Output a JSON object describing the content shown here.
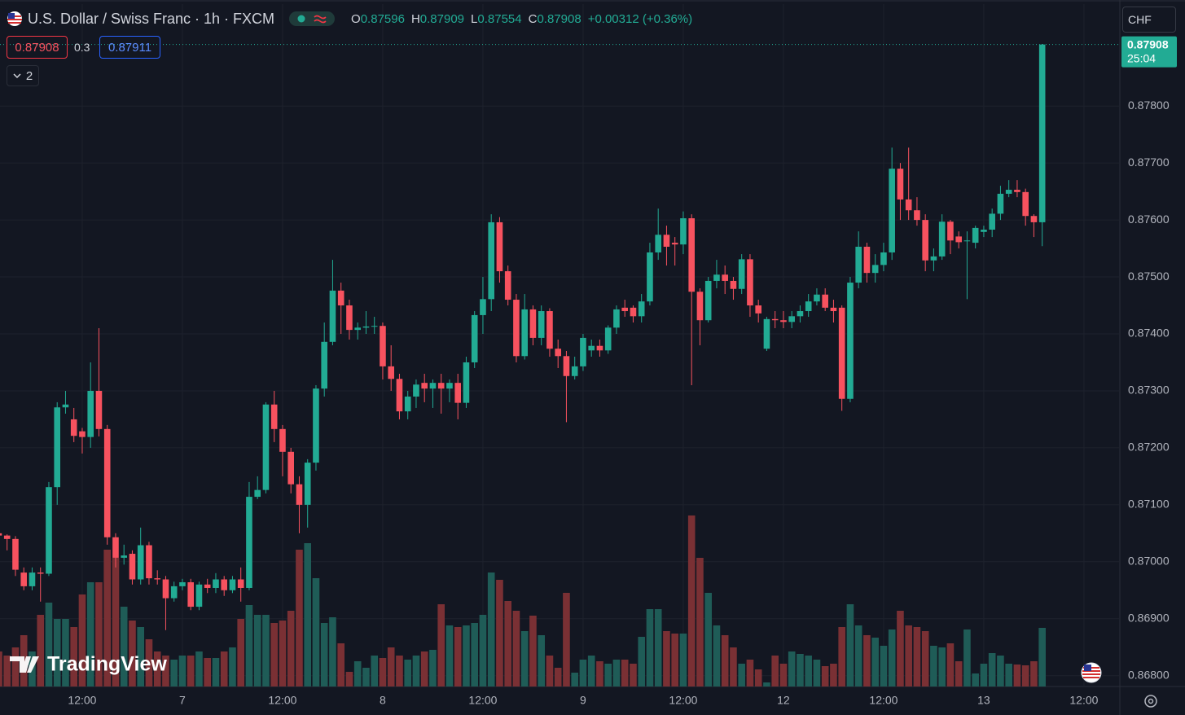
{
  "header": {
    "title": "U.S. Dollar / Swiss Franc · 1h · FXCM",
    "o": "O",
    "h": "H",
    "l": "L",
    "c": "C",
    "change": "+0.00312 (+0.36%)",
    "spread": "0.3",
    "ask": "0.87911",
    "indicators": "2",
    "currency": "CHF",
    "countdown": "25:04",
    "brand": "TradingView"
  },
  "chart_data": {
    "type": "candlestick",
    "up_color": "#22ab94",
    "down_color": "#f7525f",
    "volume_up_color": "#1f5c57",
    "volume_down_color": "#7a3034",
    "grid": true,
    "xlim": [
      0.15,
      134.3
    ],
    "xticks": [
      {
        "value": 10,
        "label": "12:00"
      },
      {
        "value": 22,
        "label": "7"
      },
      {
        "value": 34,
        "label": "12:00"
      },
      {
        "value": 46,
        "label": "8"
      },
      {
        "value": 58,
        "label": "12:00"
      },
      {
        "value": 70,
        "label": "9"
      },
      {
        "value": 82,
        "label": "12:00"
      },
      {
        "value": 94,
        "label": "12"
      },
      {
        "value": 106,
        "label": "12:00"
      },
      {
        "value": 118,
        "label": "13"
      },
      {
        "value": 130,
        "label": "12:00"
      }
    ],
    "ylim": [
      0.86781,
      0.87979
    ],
    "yticks": [
      {
        "value": 0.868,
        "label": "0.86800"
      },
      {
        "value": 0.869,
        "label": "0.86900"
      },
      {
        "value": 0.87,
        "label": "0.87000"
      },
      {
        "value": 0.871,
        "label": "0.87100"
      },
      {
        "value": 0.872,
        "label": "0.87200"
      },
      {
        "value": 0.873,
        "label": "0.87300"
      },
      {
        "value": 0.874,
        "label": "0.87400"
      },
      {
        "value": 0.875,
        "label": "0.87500"
      },
      {
        "value": 0.876,
        "label": "0.87600"
      },
      {
        "value": 0.877,
        "label": "0.87700"
      },
      {
        "value": 0.878,
        "label": "0.87800"
      }
    ],
    "open": [
      0.8705,
      0.87046,
      0.8704,
      0.86981,
      0.86957,
      0.86981,
      0.86979,
      0.87131,
      0.87271,
      0.8725,
      0.87229,
      0.87219,
      0.873,
      0.87233,
      0.87043,
      0.87007,
      0.87014,
      0.86969,
      0.87029,
      0.86971,
      0.86969,
      0.86936,
      0.86957,
      0.86964,
      0.86921,
      0.8696,
      0.86954,
      0.86969,
      0.8695,
      0.86969,
      0.86954,
      0.87114,
      0.87126,
      0.87276,
      0.87233,
      0.87193,
      0.87136,
      0.871,
      0.87174,
      0.87304,
      0.87386,
      0.87476,
      0.8745,
      0.87407,
      0.87411,
      0.87413,
      0.87414,
      0.87343,
      0.87321,
      0.87264,
      0.8729,
      0.87314,
      0.87304,
      0.87314,
      0.87304,
      0.87314,
      0.87279,
      0.8735,
      0.87433,
      0.87461,
      0.87596,
      0.8751,
      0.8746,
      0.87361,
      0.87443,
      0.87393,
      0.8744,
      0.87374,
      0.87361,
      0.87326,
      0.87343,
      0.87371,
      0.87379,
      0.87371,
      0.87411,
      0.87446,
      0.87446,
      0.87431,
      0.87457,
      0.87543,
      0.87574,
      0.8756,
      0.87557,
      0.87603,
      0.87474,
      0.87424,
      0.87493,
      0.87504,
      0.87493,
      0.87479,
      0.87531,
      0.8745,
      0.87374,
      0.87426,
      0.87424,
      0.87421,
      0.87431,
      0.8744,
      0.87457,
      0.87469,
      0.87446,
      0.87446,
      0.87286,
      0.8749,
      0.87553,
      0.87507,
      0.87521,
      0.87543,
      0.8769,
      0.87636,
      0.87617,
      0.876,
      0.87529,
      0.87536,
      0.87597,
      0.87571,
      0.87564,
      0.8756,
      0.87579,
      0.87583,
      0.87611,
      0.87646,
      0.87653,
      0.87649,
      0.87607,
      0.87596
    ],
    "high": [
      0.8706,
      0.87048,
      0.87045,
      0.8699,
      0.8699,
      0.8699,
      0.8714,
      0.8728,
      0.873,
      0.8727,
      0.87235,
      0.8735,
      0.8741,
      0.8724,
      0.8705,
      0.8703,
      0.8702,
      0.8706,
      0.87035,
      0.86985,
      0.86975,
      0.86965,
      0.8697,
      0.8697,
      0.86965,
      0.8697,
      0.8698,
      0.86975,
      0.86975,
      0.8699,
      0.8714,
      0.8715,
      0.8728,
      0.873,
      0.8724,
      0.872,
      0.8715,
      0.8718,
      0.8731,
      0.8742,
      0.8753,
      0.8749,
      0.8746,
      0.8742,
      0.8744,
      0.8743,
      0.8742,
      0.8738,
      0.8733,
      0.873,
      0.8732,
      0.8733,
      0.8732,
      0.8733,
      0.8732,
      0.8733,
      0.8736,
      0.8744,
      0.875,
      0.8761,
      0.87605,
      0.8752,
      0.8747,
      0.8747,
      0.8745,
      0.8745,
      0.87445,
      0.8739,
      0.8737,
      0.8736,
      0.874,
      0.8739,
      0.8739,
      0.87415,
      0.8745,
      0.8746,
      0.8745,
      0.8747,
      0.8756,
      0.8762,
      0.8759,
      0.8757,
      0.87615,
      0.8761,
      0.8748,
      0.875,
      0.8753,
      0.8752,
      0.875,
      0.8754,
      0.8754,
      0.8746,
      0.8743,
      0.8744,
      0.8744,
      0.8744,
      0.8745,
      0.8747,
      0.8748,
      0.8748,
      0.8746,
      0.8745,
      0.875,
      0.8758,
      0.8756,
      0.8754,
      0.8756,
      0.87727,
      0.877,
      0.87727,
      0.8764,
      0.8761,
      0.8755,
      0.8761,
      0.876,
      0.8758,
      0.8758,
      0.8759,
      0.8759,
      0.8762,
      0.8766,
      0.8767,
      0.8767,
      0.87655,
      0.8761,
      0.87909
    ],
    "low": [
      0.8703,
      0.8702,
      0.86975,
      0.8695,
      0.8695,
      0.8693,
      0.86975,
      0.871,
      0.8726,
      0.8721,
      0.8719,
      0.872,
      0.8722,
      0.8703,
      0.8699,
      0.86995,
      0.8696,
      0.8696,
      0.8696,
      0.8696,
      0.8688,
      0.8693,
      0.8695,
      0.86915,
      0.86915,
      0.86945,
      0.86945,
      0.8694,
      0.86945,
      0.8693,
      0.8695,
      0.8711,
      0.8712,
      0.8721,
      0.8715,
      0.8712,
      0.8705,
      0.8706,
      0.8716,
      0.8729,
      0.8738,
      0.874,
      0.8739,
      0.8739,
      0.874,
      0.874,
      0.8732,
      0.873,
      0.8725,
      0.8725,
      0.8727,
      0.8728,
      0.8727,
      0.8726,
      0.8728,
      0.8725,
      0.8727,
      0.8734,
      0.874,
      0.8744,
      0.8749,
      0.8745,
      0.8735,
      0.87355,
      0.8738,
      0.8738,
      0.8736,
      0.8734,
      0.87245,
      0.8732,
      0.87335,
      0.8736,
      0.8736,
      0.87365,
      0.874,
      0.8743,
      0.8742,
      0.8742,
      0.8745,
      0.8753,
      0.8752,
      0.8752,
      0.8754,
      0.8731,
      0.8738,
      0.8742,
      0.8748,
      0.8747,
      0.8746,
      0.8747,
      0.8743,
      0.8742,
      0.8737,
      0.8741,
      0.8741,
      0.8741,
      0.8742,
      0.8743,
      0.8745,
      0.8744,
      0.8742,
      0.87265,
      0.8728,
      0.8748,
      0.8749,
      0.8749,
      0.8751,
      0.8753,
      0.876,
      0.876,
      0.8759,
      0.8751,
      0.8751,
      0.8753,
      0.8754,
      0.8755,
      0.87461,
      0.8755,
      0.8757,
      0.8757,
      0.876,
      0.8764,
      0.8764,
      0.8759,
      0.8757,
      0.87554
    ],
    "close": [
      0.87046,
      0.8704,
      0.86986,
      0.86957,
      0.86981,
      0.86979,
      0.87131,
      0.87271,
      0.87276,
      0.87221,
      0.87219,
      0.873,
      0.87233,
      0.87043,
      0.87007,
      0.87011,
      0.86969,
      0.87029,
      0.86971,
      0.86969,
      0.86936,
      0.86957,
      0.86964,
      0.86921,
      0.8696,
      0.86954,
      0.86969,
      0.8695,
      0.86969,
      0.86954,
      0.87114,
      0.87126,
      0.87276,
      0.87233,
      0.87193,
      0.87136,
      0.871,
      0.87174,
      0.87304,
      0.87386,
      0.87476,
      0.8745,
      0.87407,
      0.87411,
      0.87413,
      0.87414,
      0.87343,
      0.87321,
      0.87264,
      0.8729,
      0.87311,
      0.87304,
      0.87314,
      0.87304,
      0.87314,
      0.87279,
      0.8735,
      0.87433,
      0.87461,
      0.87596,
      0.8751,
      0.8746,
      0.87361,
      0.87443,
      0.87393,
      0.8744,
      0.87374,
      0.87361,
      0.87326,
      0.87343,
      0.87393,
      0.87379,
      0.87371,
      0.87411,
      0.87443,
      0.8744,
      0.87431,
      0.87457,
      0.87543,
      0.87574,
      0.87553,
      0.87557,
      0.87603,
      0.87474,
      0.87424,
      0.87493,
      0.87504,
      0.87493,
      0.87479,
      0.87531,
      0.8745,
      0.87436,
      0.87426,
      0.87424,
      0.87421,
      0.87431,
      0.8744,
      0.87457,
      0.87469,
      0.87446,
      0.8744,
      0.87286,
      0.8749,
      0.87553,
      0.87507,
      0.87521,
      0.87543,
      0.8769,
      0.87636,
      0.87617,
      0.876,
      0.87529,
      0.87536,
      0.87597,
      0.87564,
      0.87561,
      0.87564,
      0.87586,
      0.87583,
      0.87611,
      0.87646,
      0.87653,
      0.87649,
      0.87607,
      0.87596,
      0.87908
    ],
    "volume": [
      43,
      38,
      48,
      63,
      43,
      88,
      103,
      83,
      83,
      73,
      113,
      128,
      128,
      168,
      158,
      98,
      81,
      73,
      58,
      43,
      38,
      33,
      38,
      38,
      43,
      35,
      35,
      43,
      48,
      83,
      100,
      88,
      88,
      78,
      81,
      93,
      168,
      176,
      133,
      78,
      85,
      53,
      18,
      31,
      23,
      38,
      35,
      48,
      38,
      33,
      38,
      43,
      45,
      101,
      75,
      73,
      75,
      78,
      88,
      140,
      131,
      105,
      93,
      68,
      87,
      63,
      38,
      23,
      115,
      17,
      33,
      38,
      31,
      28,
      33,
      33,
      28,
      61,
      95,
      95,
      68,
      65,
      65,
      210,
      158,
      115,
      75,
      63,
      48,
      28,
      33,
      21,
      5,
      38,
      28,
      43,
      40,
      38,
      33,
      25,
      28,
      73,
      101,
      75,
      63,
      60,
      50,
      70,
      93,
      75,
      73,
      68,
      50,
      48,
      53,
      31,
      70,
      16,
      28,
      41,
      38,
      28,
      27,
      26,
      31,
      72
    ]
  }
}
